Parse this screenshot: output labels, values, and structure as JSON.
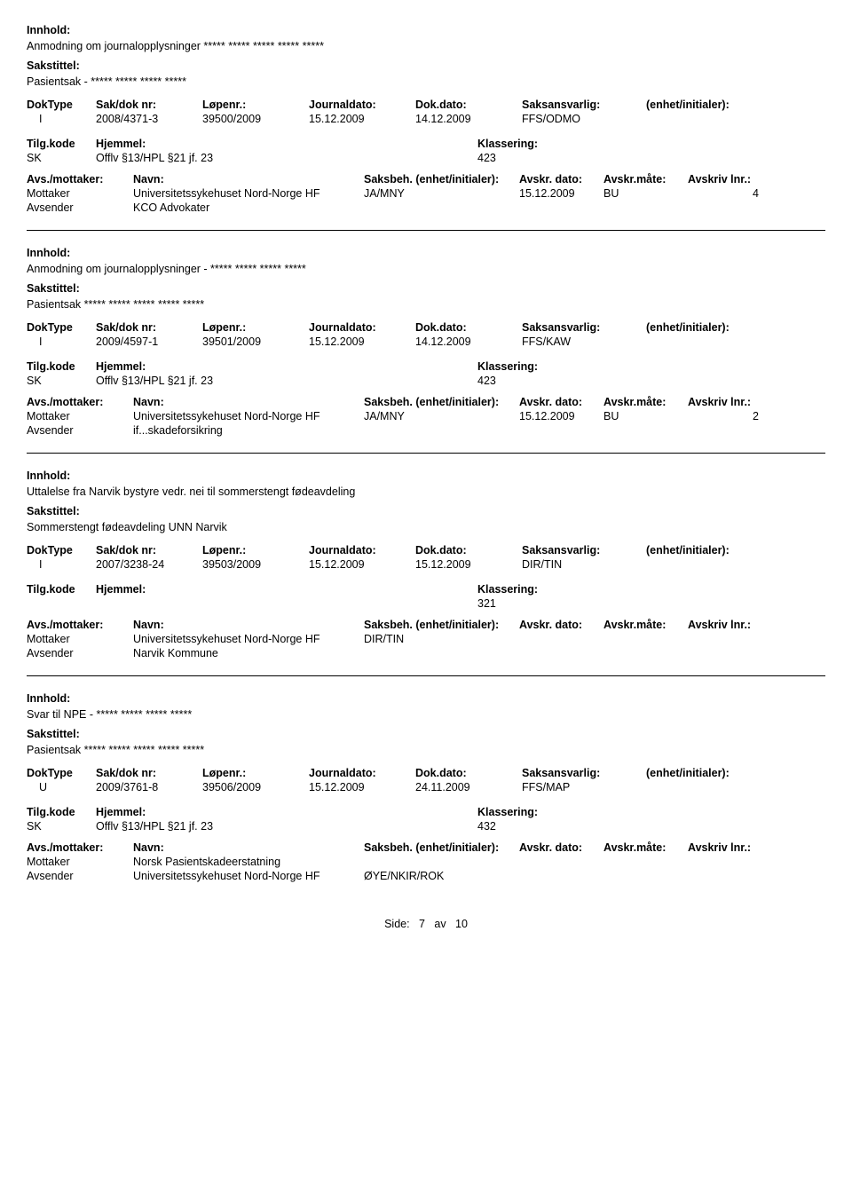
{
  "labels": {
    "innhold": "Innhold:",
    "sakstittel": "Sakstittel:",
    "doktype": "DokType",
    "sakdok": "Sak/dok nr:",
    "lopenr": "Løpenr.:",
    "journaldato": "Journaldato:",
    "dokdato": "Dok.dato:",
    "saksansvarlig": "Saksansvarlig:",
    "enhet": "(enhet/initialer):",
    "tilgkode": "Tilg.kode",
    "hjemmel": "Hjemmel:",
    "klassering": "Klassering:",
    "avsmottaker": "Avs./mottaker:",
    "navn": "Navn:",
    "saksbeh": "Saksbeh.",
    "enhet2": "(enhet/initialer):",
    "avskrdato": "Avskr. dato:",
    "avskrmate": "Avskr.måte:",
    "avskrivlnr": "Avskriv lnr.:",
    "mottaker": "Mottaker",
    "avsender": "Avsender"
  },
  "records": [
    {
      "innhold": "Anmodning om journalopplysninger ***** ***** ***** ***** *****",
      "sakstittel": "Pasientsak - ***** ***** ***** *****",
      "doktype": "I",
      "sakdok": "2008/4371-3",
      "lopenr": "39500/2009",
      "journaldato": "15.12.2009",
      "dokdato": "14.12.2009",
      "saksansvarlig": "FFS/ODMO",
      "enhet": "",
      "tilgkode": "SK",
      "hjemmel": "Offlv §13/HPL §21 jf. 23",
      "klassering": "423",
      "parties": [
        {
          "role": "Mottaker",
          "navn": "Universitetssykehuset Nord-Norge HF",
          "saksbeh": "JA/MNY",
          "avskrdato": "15.12.2009",
          "avskrmate": "BU",
          "avskrivlnr": "4"
        },
        {
          "role": "Avsender",
          "navn": "KCO Advokater",
          "saksbeh": "",
          "avskrdato": "",
          "avskrmate": "",
          "avskrivlnr": ""
        }
      ]
    },
    {
      "innhold": "Anmodning om journalopplysninger - ***** ***** ***** *****",
      "sakstittel": "Pasientsak ***** ***** ***** ***** *****",
      "doktype": "I",
      "sakdok": "2009/4597-1",
      "lopenr": "39501/2009",
      "journaldato": "15.12.2009",
      "dokdato": "14.12.2009",
      "saksansvarlig": "FFS/KAW",
      "enhet": "",
      "tilgkode": "SK",
      "hjemmel": "Offlv §13/HPL §21 jf. 23",
      "klassering": "423",
      "parties": [
        {
          "role": "Mottaker",
          "navn": "Universitetssykehuset Nord-Norge HF",
          "saksbeh": "JA/MNY",
          "avskrdato": "15.12.2009",
          "avskrmate": "BU",
          "avskrivlnr": "2"
        },
        {
          "role": "Avsender",
          "navn": "if...skadeforsikring",
          "saksbeh": "",
          "avskrdato": "",
          "avskrmate": "",
          "avskrivlnr": ""
        }
      ]
    },
    {
      "innhold": "Uttalelse fra Narvik bystyre vedr. nei til sommerstengt fødeavdeling",
      "sakstittel": "Sommerstengt fødeavdeling UNN Narvik",
      "doktype": "I",
      "sakdok": "2007/3238-24",
      "lopenr": "39503/2009",
      "journaldato": "15.12.2009",
      "dokdato": "15.12.2009",
      "saksansvarlig": "DIR/TIN",
      "enhet": "",
      "tilgkode": "",
      "hjemmel": "",
      "klassering": "321",
      "parties": [
        {
          "role": "Mottaker",
          "navn": "Universitetssykehuset Nord-Norge HF",
          "saksbeh": "DIR/TIN",
          "avskrdato": "",
          "avskrmate": "",
          "avskrivlnr": ""
        },
        {
          "role": "Avsender",
          "navn": "Narvik Kommune",
          "saksbeh": "",
          "avskrdato": "",
          "avskrmate": "",
          "avskrivlnr": ""
        }
      ]
    },
    {
      "innhold": "Svar til NPE - ***** ***** ***** *****",
      "sakstittel": "Pasientsak ***** ***** ***** ***** *****",
      "doktype": "U",
      "sakdok": "2009/3761-8",
      "lopenr": "39506/2009",
      "journaldato": "15.12.2009",
      "dokdato": "24.11.2009",
      "saksansvarlig": "FFS/MAP",
      "enhet": "",
      "tilgkode": "SK",
      "hjemmel": "Offlv §13/HPL §21 jf. 23",
      "klassering": "432",
      "parties": [
        {
          "role": "Mottaker",
          "navn": "Norsk Pasientskadeerstatning",
          "saksbeh": "",
          "avskrdato": "",
          "avskrmate": "",
          "avskrivlnr": ""
        },
        {
          "role": "Avsender",
          "navn": "Universitetssykehuset Nord-Norge HF",
          "saksbeh": "ØYE/NKIR/ROK",
          "avskrdato": "",
          "avskrmate": "",
          "avskrivlnr": ""
        }
      ]
    }
  ],
  "footer": {
    "label": "Side:",
    "current": "7",
    "sep": "av",
    "total": "10"
  }
}
